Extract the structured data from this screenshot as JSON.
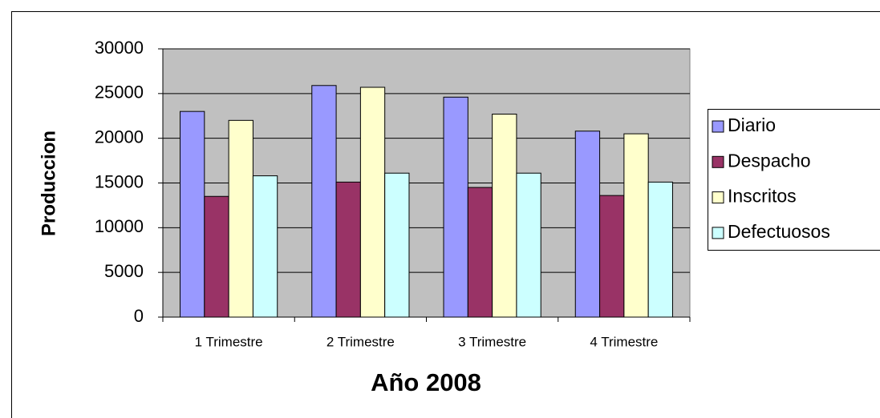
{
  "chart_data": {
    "type": "bar",
    "categories": [
      "1 Trimestre",
      "2 Trimestre",
      "3 Trimestre",
      "4 Trimestre"
    ],
    "series": [
      {
        "name": "Diario",
        "color": "#9999ff",
        "values": [
          23000,
          25900,
          24600,
          20800
        ]
      },
      {
        "name": "Despacho",
        "color": "#993366",
        "values": [
          13500,
          15100,
          14500,
          13600
        ]
      },
      {
        "name": "Inscritos",
        "color": "#ffffcc",
        "values": [
          22000,
          25700,
          22700,
          20500
        ]
      },
      {
        "name": "Defectuosos",
        "color": "#ccffff",
        "values": [
          15800,
          16100,
          16100,
          15100
        ]
      }
    ],
    "xlabel": "Año 2008",
    "ylabel": "Produccion",
    "ylim": [
      0,
      30000
    ],
    "yticks": [
      0,
      5000,
      10000,
      15000,
      20000,
      25000,
      30000
    ],
    "grid": true,
    "legend": "right",
    "plot_background": "#c0c0c0"
  }
}
